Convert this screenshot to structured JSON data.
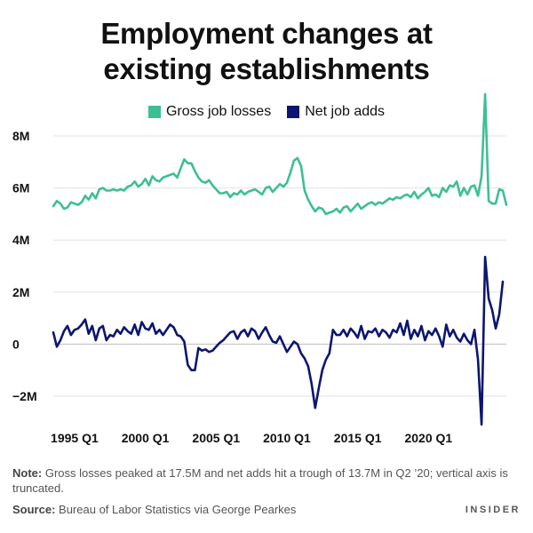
{
  "title_line1": "Employment changes at",
  "title_line2": "existing establishments",
  "footer": {
    "note_label": "Note:",
    "note_text": "Gross losses peaked at 17.5M and net adds hit a trough of 13.7M in Q2 ’20; vertical axis is truncated.",
    "source_label": "Source:",
    "source_text": "Bureau of Labor Statistics via George Pearkes",
    "brand": "INSIDER"
  },
  "chart_data": {
    "type": "line",
    "title": "Employment changes at existing establishments",
    "xlabel": "",
    "ylabel": "",
    "x_start": 1993.5,
    "x_step": 0.25,
    "x_tick_labels": [
      {
        "value": 1995,
        "label": "1995 Q1"
      },
      {
        "value": 2000,
        "label": "2000 Q1"
      },
      {
        "value": 2005,
        "label": "2005 Q1"
      },
      {
        "value": 2010,
        "label": "2010 Q1"
      },
      {
        "value": 2015,
        "label": "2015 Q1"
      },
      {
        "value": 2020,
        "label": "2020 Q1"
      }
    ],
    "y_ticks": [
      {
        "value": 8,
        "label": "8M"
      },
      {
        "value": 6,
        "label": "6M"
      },
      {
        "value": 4,
        "label": "4M"
      },
      {
        "value": 2,
        "label": "2M"
      },
      {
        "value": 0,
        "label": "0"
      },
      {
        "value": -2,
        "label": "−2M"
      }
    ],
    "ylim": [
      -3.1,
      9.5
    ],
    "ylim_note": "vertical axis is truncated",
    "grid": "horizontal",
    "legend_position": "top-center",
    "series": [
      {
        "name": "Gross job losses",
        "color": "#3dbf95",
        "values": [
          5.3,
          5.5,
          5.4,
          5.2,
          5.25,
          5.45,
          5.4,
          5.35,
          5.45,
          5.7,
          5.55,
          5.8,
          5.6,
          5.95,
          6.0,
          5.9,
          5.9,
          5.95,
          5.9,
          5.95,
          5.9,
          6.05,
          6.1,
          6.25,
          6.05,
          6.15,
          6.35,
          6.1,
          6.45,
          6.3,
          6.25,
          6.4,
          6.45,
          6.5,
          6.55,
          6.4,
          6.75,
          7.1,
          6.95,
          6.95,
          6.65,
          6.4,
          6.25,
          6.2,
          6.3,
          6.1,
          5.95,
          5.8,
          5.8,
          5.85,
          5.65,
          5.8,
          5.75,
          5.9,
          5.75,
          5.85,
          5.9,
          5.95,
          5.85,
          5.75,
          6.0,
          6.05,
          5.85,
          6.0,
          6.15,
          6.05,
          6.2,
          6.6,
          7.05,
          7.15,
          6.85,
          5.9,
          5.55,
          5.3,
          5.1,
          5.25,
          5.2,
          5.0,
          5.05,
          5.1,
          5.2,
          5.05,
          5.25,
          5.3,
          5.1,
          5.25,
          5.4,
          5.2,
          5.3,
          5.4,
          5.45,
          5.35,
          5.45,
          5.4,
          5.5,
          5.6,
          5.55,
          5.65,
          5.6,
          5.7,
          5.75,
          5.65,
          5.85,
          5.6,
          5.75,
          5.85,
          6.0,
          5.7,
          5.75,
          5.65,
          6.0,
          5.85,
          6.1,
          6.05,
          6.25,
          5.7,
          6.0,
          5.75,
          6.05,
          6.1,
          5.7,
          6.45,
          9.6,
          5.5,
          5.4,
          5.4,
          5.95,
          5.9,
          5.35
        ]
      },
      {
        "name": "Net job adds",
        "color": "#0c1670",
        "values": [
          0.45,
          -0.1,
          0.15,
          0.5,
          0.7,
          0.35,
          0.55,
          0.6,
          0.75,
          0.95,
          0.4,
          0.7,
          0.15,
          0.6,
          0.7,
          0.15,
          0.35,
          0.3,
          0.55,
          0.4,
          0.65,
          0.5,
          0.4,
          0.75,
          0.35,
          0.85,
          0.6,
          0.55,
          0.8,
          0.4,
          0.55,
          0.35,
          0.55,
          0.75,
          0.65,
          0.35,
          0.3,
          0.1,
          -0.8,
          -1.0,
          -1.0,
          -0.15,
          -0.25,
          -0.2,
          -0.3,
          -0.25,
          -0.1,
          0.05,
          0.15,
          0.3,
          0.45,
          0.5,
          0.2,
          0.45,
          0.55,
          0.3,
          0.6,
          0.5,
          0.2,
          0.45,
          0.65,
          0.35,
          0.1,
          0.05,
          0.3,
          0.0,
          -0.3,
          -0.1,
          0.1,
          0.0,
          -0.35,
          -0.55,
          -0.85,
          -1.55,
          -2.45,
          -1.7,
          -1.0,
          -0.6,
          -0.35,
          0.55,
          0.35,
          0.35,
          0.55,
          0.3,
          0.6,
          0.45,
          0.25,
          0.7,
          0.2,
          0.5,
          0.45,
          0.6,
          0.3,
          0.55,
          0.45,
          0.25,
          0.55,
          0.45,
          0.8,
          0.35,
          0.9,
          0.2,
          0.55,
          0.3,
          0.7,
          0.15,
          0.5,
          0.35,
          0.6,
          0.3,
          -0.1,
          0.75,
          0.3,
          0.55,
          0.25,
          0.1,
          0.4,
          0.15,
          0.0,
          0.55,
          -0.6,
          -3.2,
          3.35,
          1.75,
          1.3,
          0.6,
          1.15,
          2.4
        ]
      }
    ]
  }
}
